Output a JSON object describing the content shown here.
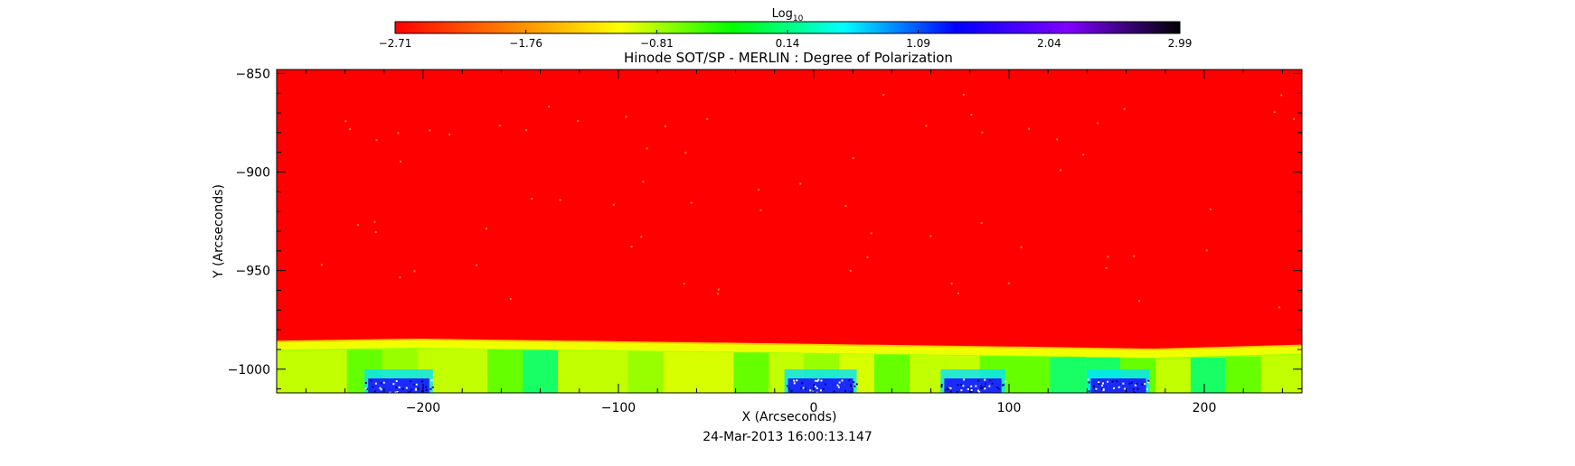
{
  "chart_data": {
    "type": "heatmap",
    "title": "Hinode SOT/SP - MERLIN : Degree of Polarization",
    "xlabel": "X (Arcseconds)",
    "ylabel": "Y (Arcseconds)",
    "xlim": [
      -275,
      250
    ],
    "ylim": [
      -1012,
      -848
    ],
    "x_ticks": [
      -200,
      -100,
      0,
      100,
      200
    ],
    "x_tick_labels": [
      "−200",
      "−100",
      "0",
      "100",
      "200"
    ],
    "y_ticks": [
      -850,
      -900,
      -950,
      -1000
    ],
    "y_tick_labels": [
      "−850",
      "−900",
      "−950",
      "−1000"
    ],
    "colorbar": {
      "label_prefix": "Log",
      "label_subscript": "10",
      "range": [
        -2.71,
        2.99
      ],
      "ticks": [
        -2.71,
        -1.76,
        -0.81,
        0.14,
        1.09,
        2.04,
        2.99
      ],
      "tick_labels": [
        "−2.71",
        "−1.76",
        "−0.81",
        "0.14",
        "1.09",
        "2.04",
        "2.99"
      ],
      "colormap": [
        "#ff0000",
        "#ff8000",
        "#ffff00",
        "#00ff00",
        "#00ffff",
        "#0000ff",
        "#8000ff",
        "#000000"
      ]
    },
    "limb_y_at_x": {
      "x": [
        -275,
        -205,
        -200,
        -125,
        -120,
        -50,
        -45,
        25,
        30,
        100,
        105,
        170,
        175,
        250
      ],
      "y": [
        -986,
        -985,
        -985,
        -986,
        -986,
        -987,
        -987,
        -988,
        -988,
        -989,
        -989,
        -990,
        -990,
        -988
      ]
    },
    "low_region_colors": [
      "#5aff00",
      "#96ff00",
      "#c8ff00",
      "#e0ff00",
      "#00ff78"
    ],
    "polarization_hotspots_x": [
      [
        -230,
        -195
      ],
      [
        -15,
        22
      ],
      [
        65,
        98
      ],
      [
        140,
        172
      ]
    ],
    "date": "24-Mar-2013 16:00:13.147"
  }
}
